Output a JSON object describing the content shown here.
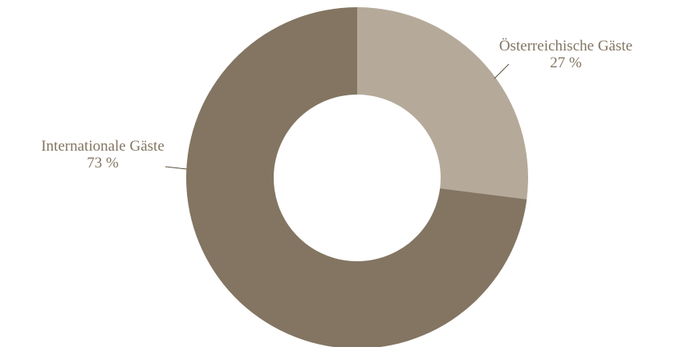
{
  "chart_data": {
    "type": "pie",
    "donut": true,
    "title": "",
    "legend": "none",
    "slices": [
      {
        "name": "Österreichische Gäste",
        "value": 27,
        "value_label": "27 %",
        "color": "#b5aa9a"
      },
      {
        "name": "Internationale Gäste",
        "value": 73,
        "value_label": "73 %",
        "color": "#837562"
      }
    ]
  },
  "colors": {
    "label_text": "#837562",
    "leader_line": "#5c5040",
    "background": "#ffffff"
  }
}
